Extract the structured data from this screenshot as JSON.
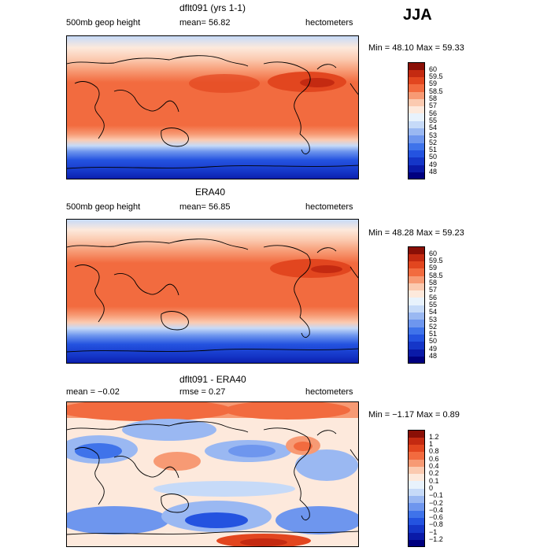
{
  "season": "JJA",
  "panels": [
    {
      "title": "dflt091 (yrs 1-1)",
      "left_label": "500mb geop height",
      "mean_label": "mean=  56.82",
      "right_label": "hectometers",
      "minmax": "Min =  48.10 Max =  59.33"
    },
    {
      "title": "ERA40",
      "left_label": "500mb geop height",
      "mean_label": "mean=  56.85",
      "right_label": "hectometers",
      "minmax": "Min =  48.28 Max =  59.23"
    },
    {
      "title": "dflt091 - ERA40",
      "left_label": "mean =  −0.02",
      "mean_label": "rmse =   0.27",
      "right_label": "hectometers",
      "minmax": "Min =  −1.17 Max =   0.89"
    }
  ],
  "chart_data": [
    {
      "type": "heatmap",
      "title": "dflt091 (yrs 1-1)",
      "variable": "500mb geop height",
      "units": "hectometers",
      "mean": 56.82,
      "min": 48.1,
      "max": 59.33,
      "colorbar_levels": [
        "48",
        "49",
        "50",
        "51",
        "52",
        "53",
        "54",
        "55",
        "56",
        "57",
        "58",
        "58.5",
        "59",
        "59.5",
        "60"
      ],
      "colors": [
        "#00007f",
        "#0a1aa8",
        "#1536c8",
        "#2453e0",
        "#3f73ea",
        "#6e96ee",
        "#9ab8f2",
        "#c6daf8",
        "#e8f2fc",
        "#fde9dc",
        "#fbcab0",
        "#f79a74",
        "#f26b3f",
        "#e2461f",
        "#c42a11",
        "#8a0f06"
      ]
    },
    {
      "type": "heatmap",
      "title": "ERA40",
      "variable": "500mb geop height",
      "units": "hectometers",
      "mean": 56.85,
      "min": 48.28,
      "max": 59.23,
      "colorbar_levels": [
        "48",
        "49",
        "50",
        "51",
        "52",
        "53",
        "54",
        "55",
        "56",
        "57",
        "58",
        "58.5",
        "59",
        "59.5",
        "60"
      ],
      "colors": [
        "#00007f",
        "#0a1aa8",
        "#1536c8",
        "#2453e0",
        "#3f73ea",
        "#6e96ee",
        "#9ab8f2",
        "#c6daf8",
        "#e8f2fc",
        "#fde9dc",
        "#fbcab0",
        "#f79a74",
        "#f26b3f",
        "#e2461f",
        "#c42a11",
        "#8a0f06"
      ]
    },
    {
      "type": "heatmap",
      "title": "dflt091 - ERA40",
      "units": "hectometers",
      "mean": -0.02,
      "rmse": 0.27,
      "min": -1.17,
      "max": 0.89,
      "colorbar_levels": [
        "−1.2",
        "−1",
        "−0.8",
        "−0.6",
        "−0.4",
        "−0.2",
        "−0.1",
        "0",
        "0.1",
        "0.2",
        "0.4",
        "0.6",
        "0.8",
        "1",
        "1.2"
      ],
      "colors": [
        "#00007f",
        "#0a1aa8",
        "#1536c8",
        "#2453e0",
        "#3f73ea",
        "#6e96ee",
        "#9ab8f2",
        "#c6daf8",
        "#e8f2fc",
        "#fde9dc",
        "#fbcab0",
        "#f79a74",
        "#f26b3f",
        "#e2461f",
        "#c42a11",
        "#8a0f06"
      ]
    }
  ]
}
